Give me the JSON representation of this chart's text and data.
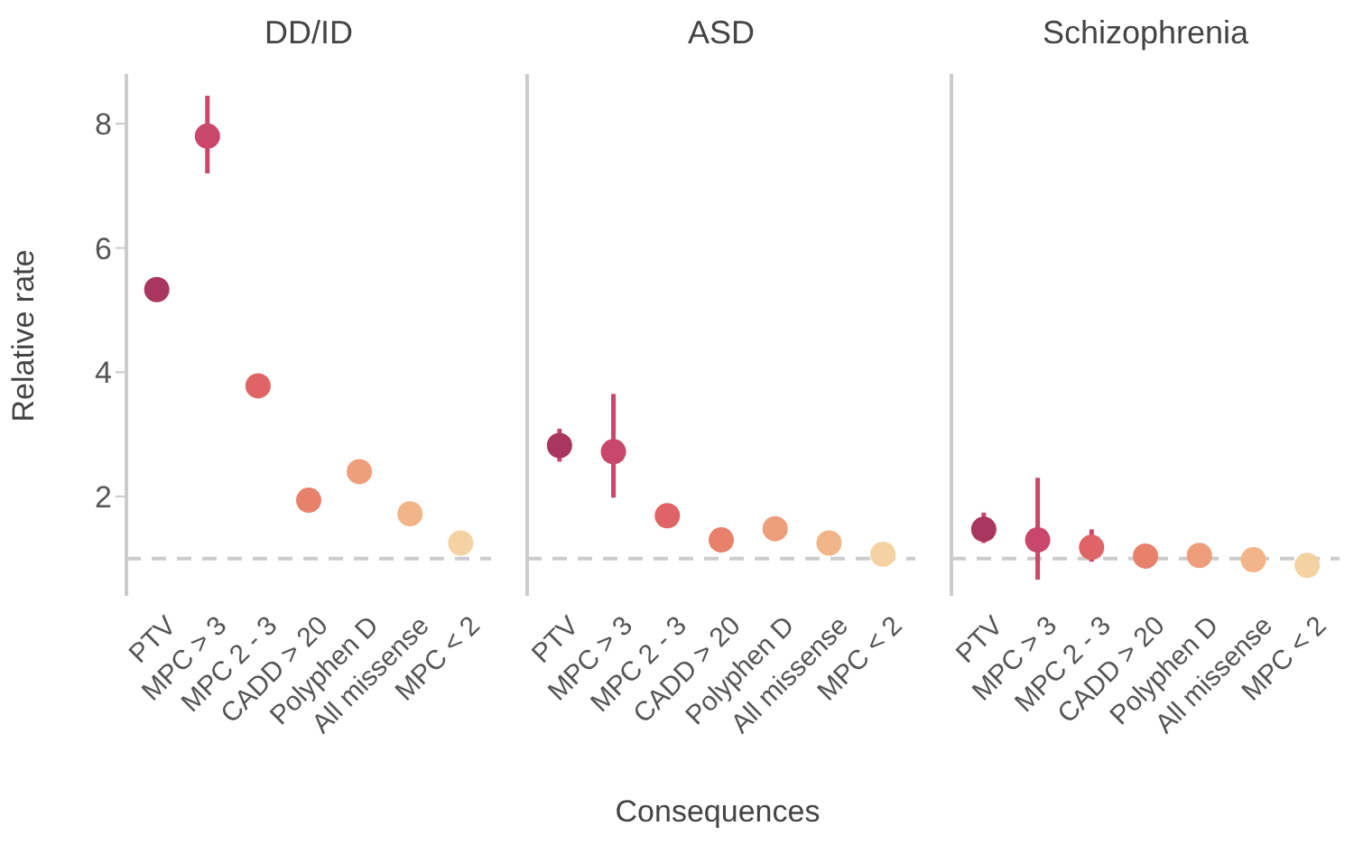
{
  "chart_data": [
    {
      "type": "scatter",
      "title": "DD/ID",
      "ylabel": "Relative rate",
      "categories": [
        "PTV",
        "MPC > 3",
        "MPC 2 - 3",
        "CADD > 20",
        "Polyphen D",
        "All missense",
        "MPC < 2"
      ],
      "values": [
        5.33,
        7.8,
        3.78,
        1.94,
        2.4,
        1.72,
        1.25
      ],
      "errors": [
        null,
        [
          7.2,
          8.45
        ],
        null,
        null,
        null,
        null,
        null
      ],
      "colors": [
        "#a8365f",
        "#c9476a",
        "#de6466",
        "#e8816b",
        "#ee9e7a",
        "#f2b587",
        "#f5d2a2"
      ],
      "ylim": [
        0.4,
        8.8
      ],
      "yticks": [
        2,
        4,
        6,
        8
      ],
      "grid": false,
      "marker": "circle",
      "ref_lines": [
        {
          "axis": "y",
          "value": 1,
          "color": "#cccccc",
          "line_style": "dashed"
        }
      ]
    },
    {
      "type": "scatter",
      "title": "ASD",
      "xlabel": "Consequences",
      "categories": [
        "PTV",
        "MPC > 3",
        "MPC 2 - 3",
        "CADD > 20",
        "Polyphen D",
        "All missense",
        "MPC < 2"
      ],
      "values": [
        2.82,
        2.72,
        1.69,
        1.3,
        1.48,
        1.25,
        1.07
      ],
      "errors": [
        [
          2.56,
          3.09
        ],
        [
          1.98,
          3.65
        ],
        null,
        null,
        null,
        null,
        null
      ],
      "colors": [
        "#a8365f",
        "#c9476a",
        "#de6466",
        "#e8816b",
        "#ee9e7a",
        "#f2b587",
        "#f5d2a2"
      ],
      "ylim": [
        0.4,
        8.8
      ],
      "yticks": [
        2,
        4,
        6,
        8
      ],
      "tick_labels": "x",
      "grid": false,
      "marker": "circle",
      "ref_lines": [
        {
          "axis": "y",
          "value": 1,
          "color": "#cccccc",
          "line_style": "dashed"
        }
      ]
    },
    {
      "type": "scatter",
      "title": "Schizophrenia",
      "categories": [
        "PTV",
        "MPC > 3",
        "MPC 2 - 3",
        "CADD > 20",
        "Polyphen D",
        "All missense",
        "MPC < 2"
      ],
      "values": [
        1.47,
        1.3,
        1.18,
        1.04,
        1.05,
        0.98,
        0.89
      ],
      "errors": [
        [
          1.25,
          1.74
        ],
        [
          0.66,
          2.3
        ],
        [
          0.95,
          1.47
        ],
        null,
        null,
        null,
        null
      ],
      "colors": [
        "#a8365f",
        "#c9476a",
        "#de6466",
        "#e8816b",
        "#ee9e7a",
        "#f2b587",
        "#f5d2a2"
      ],
      "ylim": [
        0.4,
        8.8
      ],
      "yticks": [
        2,
        4,
        6,
        8
      ],
      "tick_labels": "x",
      "grid": false,
      "marker": "circle",
      "ref_lines": [
        {
          "axis": "y",
          "value": 1,
          "color": "#cccccc",
          "line_style": "dashed"
        }
      ]
    }
  ]
}
